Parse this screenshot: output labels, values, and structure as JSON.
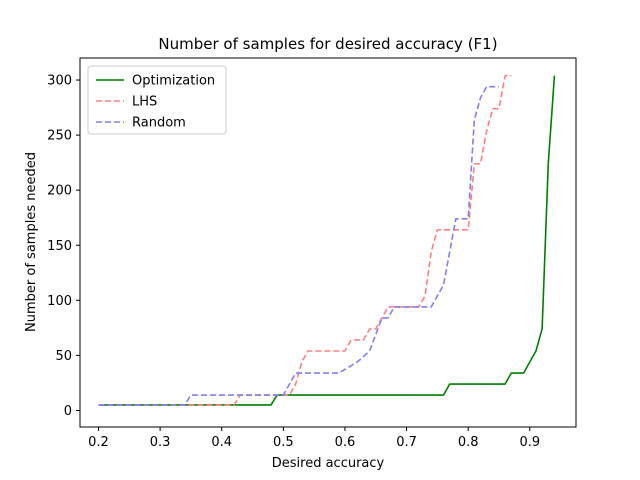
{
  "chart_data": {
    "type": "line",
    "title": "Number of samples for desired accuracy (F1)",
    "xlabel": "Desired accuracy",
    "ylabel": "Number of samples needed",
    "xlim": [
      0.17,
      0.975
    ],
    "ylim": [
      -15,
      320
    ],
    "xticks": [
      0.2,
      0.3,
      0.4,
      0.5,
      0.6,
      0.7,
      0.8,
      0.9
    ],
    "xtick_labels": [
      "0.2",
      "0.3",
      "0.4",
      "0.5",
      "0.6",
      "0.7",
      "0.8",
      "0.9"
    ],
    "yticks": [
      0,
      50,
      100,
      150,
      200,
      250,
      300
    ],
    "ytick_labels": [
      "0",
      "50",
      "100",
      "150",
      "200",
      "250",
      "300"
    ],
    "grid": false,
    "legend_position": "top-left",
    "series": [
      {
        "name": "Optimization",
        "color": "#008000",
        "dash": "solid",
        "x": [
          0.2,
          0.48,
          0.49,
          0.5,
          0.6,
          0.7,
          0.76,
          0.77,
          0.8,
          0.86,
          0.87,
          0.88,
          0.89,
          0.9,
          0.91,
          0.92,
          0.93,
          0.94
        ],
        "y": [
          5,
          5,
          14,
          14,
          14,
          14,
          14,
          24,
          24,
          24,
          34,
          34,
          34,
          44,
          54,
          74,
          224,
          304
        ]
      },
      {
        "name": "LHS",
        "color": "#ff8080",
        "dash": "dashed",
        "x": [
          0.2,
          0.42,
          0.43,
          0.51,
          0.52,
          0.53,
          0.54,
          0.6,
          0.61,
          0.63,
          0.64,
          0.65,
          0.66,
          0.67,
          0.68,
          0.72,
          0.73,
          0.74,
          0.75,
          0.8,
          0.81,
          0.82,
          0.83,
          0.84,
          0.85,
          0.86,
          0.87
        ],
        "y": [
          5,
          5,
          14,
          14,
          24,
          44,
          54,
          54,
          64,
          64,
          74,
          74,
          84,
          94,
          94,
          94,
          104,
          144,
          164,
          164,
          224,
          224,
          254,
          274,
          274,
          304,
          304
        ]
      },
      {
        "name": "Random",
        "color": "#8080f0",
        "dash": "dashed",
        "x": [
          0.2,
          0.34,
          0.35,
          0.5,
          0.51,
          0.52,
          0.53,
          0.59,
          0.62,
          0.64,
          0.66,
          0.67,
          0.68,
          0.69,
          0.7,
          0.74,
          0.75,
          0.76,
          0.77,
          0.78,
          0.8,
          0.81,
          0.82,
          0.83,
          0.84,
          0.85
        ],
        "y": [
          5,
          5,
          14,
          14,
          24,
          34,
          34,
          34,
          44,
          54,
          84,
          84,
          94,
          94,
          94,
          94,
          104,
          114,
          144,
          174,
          174,
          264,
          284,
          294,
          294,
          294
        ]
      }
    ]
  }
}
